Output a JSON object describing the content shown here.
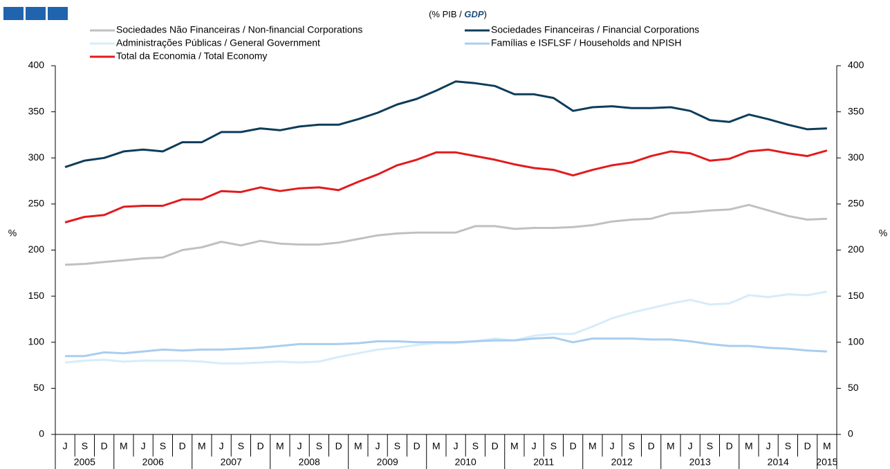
{
  "chart_data": {
    "type": "line",
    "subtitle": [
      "(% PIB / ",
      "GDP",
      ")"
    ],
    "y_label": "%",
    "y2_label": "%",
    "categories": [
      "J",
      "S",
      "D",
      "M",
      "J",
      "S",
      "D",
      "M",
      "J",
      "S",
      "D",
      "M",
      "J",
      "S",
      "D",
      "M",
      "J",
      "S",
      "D",
      "M",
      "J",
      "S",
      "D",
      "M",
      "J",
      "S",
      "D",
      "M",
      "J",
      "S",
      "D",
      "M",
      "J",
      "S",
      "D",
      "M",
      "J",
      "S",
      "D",
      "M"
    ],
    "years": [
      "2005",
      "2006",
      "2007",
      "2008",
      "2009",
      "2010",
      "2011",
      "2012",
      "2013",
      "2014",
      "2015"
    ],
    "ylim": [
      0,
      400
    ],
    "yticks": [
      0,
      50,
      100,
      150,
      200,
      250,
      300,
      350,
      400
    ],
    "y2lim": [
      0,
      400
    ],
    "y2ticks": [
      0,
      50,
      100,
      150,
      200,
      250,
      300,
      350,
      400
    ],
    "grid": false,
    "series": [
      {
        "name": "Sociedades Não Financeiras / Non-financial Corporations",
        "color": "#c0c0c0",
        "values": [
          184,
          185,
          187,
          189,
          191,
          192,
          200,
          203,
          209,
          205,
          210,
          207,
          206,
          206,
          208,
          212,
          216,
          218,
          219,
          219,
          219,
          226,
          226,
          223,
          224,
          224,
          225,
          227,
          231,
          233,
          234,
          240,
          241,
          243,
          244,
          249,
          243,
          237,
          233,
          234
        ]
      },
      {
        "name": "Sociedades Financeiras / Financial Corporations",
        "color": "#0d3c5a",
        "values": [
          290,
          297,
          300,
          307,
          309,
          307,
          317,
          317,
          328,
          328,
          332,
          330,
          334,
          336,
          336,
          342,
          349,
          358,
          364,
          373,
          383,
          381,
          378,
          369,
          369,
          365,
          351,
          355,
          356,
          354,
          354,
          355,
          351,
          341,
          339,
          347,
          342,
          336,
          331,
          332
        ]
      },
      {
        "name": "Administrações Públicas / General Government",
        "color": "#d6ecfa",
        "values": [
          78,
          80,
          81,
          79,
          80,
          80,
          80,
          79,
          77,
          77,
          78,
          79,
          78,
          79,
          84,
          88,
          92,
          94,
          97,
          99,
          99,
          101,
          104,
          102,
          107,
          109,
          109,
          117,
          126,
          132,
          137,
          142,
          146,
          141,
          142,
          151,
          149,
          152,
          151,
          155
        ]
      },
      {
        "name": "Famílias e ISFLSF / Households and NPISH",
        "color": "#a9cdef",
        "values": [
          85,
          85,
          89,
          88,
          90,
          92,
          91,
          92,
          92,
          93,
          94,
          96,
          98,
          98,
          98,
          99,
          101,
          101,
          100,
          100,
          100,
          101,
          102,
          102,
          104,
          105,
          100,
          104,
          104,
          104,
          103,
          103,
          101,
          98,
          96,
          96,
          94,
          93,
          91,
          90
        ]
      },
      {
        "name": "Total da Economia / Total Economy",
        "color": "#e31a1c",
        "values": [
          230,
          236,
          238,
          247,
          248,
          248,
          255,
          255,
          264,
          263,
          268,
          264,
          267,
          268,
          265,
          274,
          282,
          292,
          298,
          306,
          306,
          302,
          298,
          293,
          289,
          287,
          281,
          287,
          292,
          295,
          302,
          307,
          305,
          297,
          299,
          307,
          309,
          305,
          302,
          308
        ]
      }
    ]
  }
}
